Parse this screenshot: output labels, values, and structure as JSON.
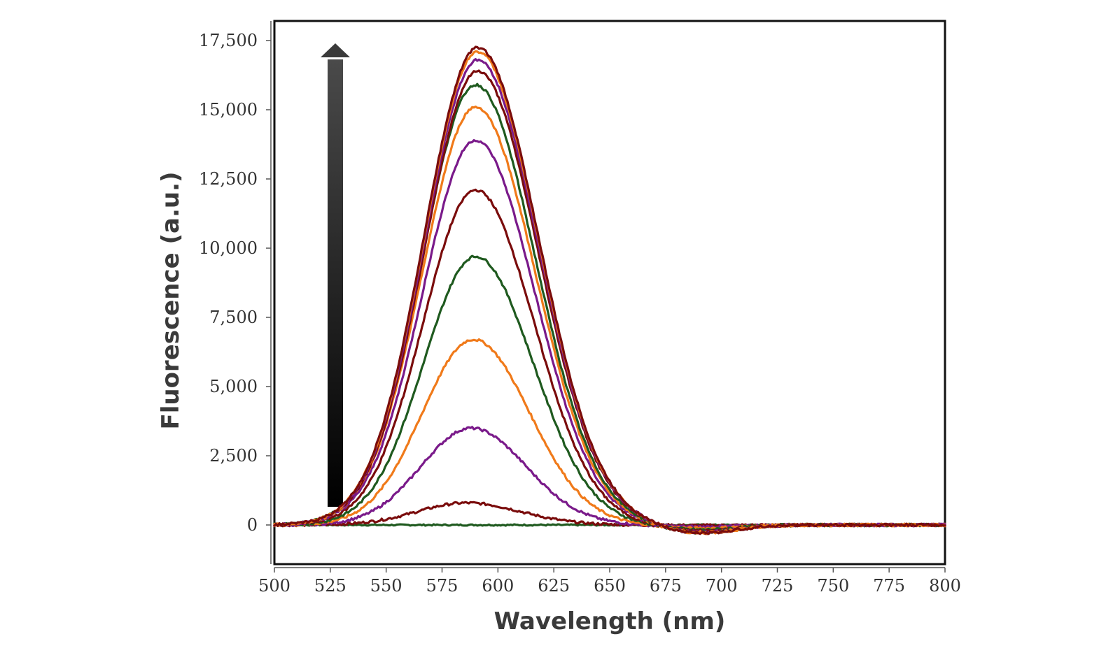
{
  "chart_data": {
    "type": "line",
    "title": "",
    "xlabel": "Wavelength (nm)",
    "ylabel": "Fluorescence (a.u.)",
    "xlim": [
      500,
      800
    ],
    "ylim": [
      -1400,
      18000
    ],
    "xticks": [
      "500",
      "525",
      "550",
      "575",
      "600",
      "625",
      "650",
      "675",
      "700",
      "725",
      "750",
      "775",
      "800"
    ],
    "yticks": [
      "17,500",
      "15,000",
      "12,500",
      "10,000",
      "7,500",
      "5,000",
      "2,500",
      "0"
    ],
    "grid": false,
    "legend": "none",
    "annotation": "upward arrow indicating increasing fluorescence",
    "series": [
      {
        "peak_x": 591,
        "peak_y": 0,
        "color": "#1f5a1f"
      },
      {
        "peak_x": 586,
        "peak_y": 800,
        "color": "#7a0c0c"
      },
      {
        "peak_x": 588,
        "peak_y": 3500,
        "color": "#7a1a8a"
      },
      {
        "peak_x": 589,
        "peak_y": 6700,
        "color": "#f07a1a"
      },
      {
        "peak_x": 590,
        "peak_y": 9700,
        "color": "#1f5a1f"
      },
      {
        "peak_x": 590,
        "peak_y": 12100,
        "color": "#7a0c0c"
      },
      {
        "peak_x": 590,
        "peak_y": 13900,
        "color": "#7a1a8a"
      },
      {
        "peak_x": 590,
        "peak_y": 15100,
        "color": "#f07a1a"
      },
      {
        "peak_x": 590,
        "peak_y": 15900,
        "color": "#1f5a1f"
      },
      {
        "peak_x": 591,
        "peak_y": 16400,
        "color": "#7a0c0c"
      },
      {
        "peak_x": 591,
        "peak_y": 16800,
        "color": "#7a1a8a"
      },
      {
        "peak_x": 591,
        "peak_y": 17100,
        "color": "#f07a1a"
      },
      {
        "peak_x": 591,
        "peak_y": 17250,
        "color": "#7a0c0c"
      }
    ]
  }
}
